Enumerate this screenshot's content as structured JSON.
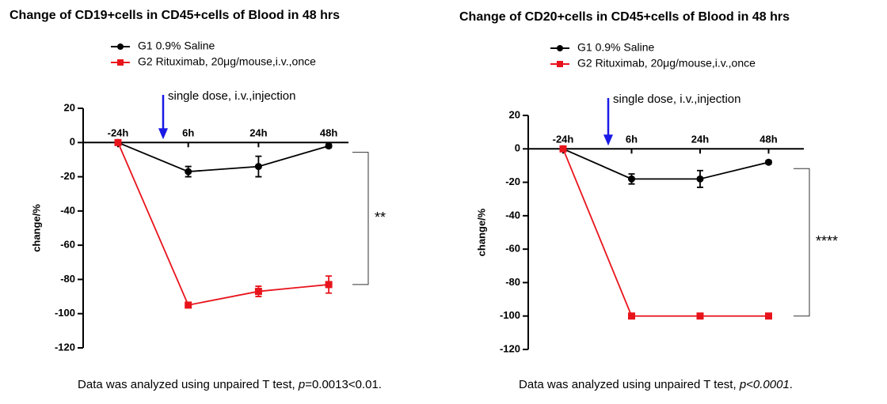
{
  "chart_data": [
    {
      "type": "line",
      "title": "Change of CD19+cells in CD45+cells of Blood in 48 hrs",
      "y_label": "change/%",
      "categories": [
        "-24h",
        "6h",
        "24h",
        "48h"
      ],
      "series": [
        {
          "name": "G1 0.9% Saline",
          "color": "#000000",
          "marker": "circle",
          "values": [
            0,
            -17,
            -14,
            -2
          ],
          "errors": [
            1,
            3,
            6,
            1
          ]
        },
        {
          "name": "G2 Rituximab, 20μg/mouse,i.v.,once",
          "color": "#e8141c",
          "marker": "square",
          "values": [
            0,
            -95,
            -87,
            -83
          ],
          "errors": [
            1,
            1,
            3,
            5
          ]
        }
      ],
      "ylim": [
        -120,
        20
      ],
      "yticks": [
        -120,
        -100,
        -80,
        -60,
        -40,
        -20,
        0,
        20
      ],
      "dose_annotation": "single dose, i.v.,injection",
      "significance": "**",
      "footnote": [
        {
          "text": "Data was analyzed using unpaired T test, ",
          "italic": false
        },
        {
          "text": "p",
          "italic": true
        },
        {
          "text": "=0.0013<0.01.",
          "italic": false
        }
      ]
    },
    {
      "type": "line",
      "title": "Change of CD20+cells in CD45+cells of Blood in 48 hrs",
      "y_label": "change/%",
      "categories": [
        "-24h",
        "6h",
        "24h",
        "48h"
      ],
      "series": [
        {
          "name": "G1 0.9% Saline",
          "color": "#000000",
          "marker": "circle",
          "values": [
            0,
            -18,
            -18,
            -8
          ],
          "errors": [
            1,
            3,
            5,
            1
          ]
        },
        {
          "name": "G2 Rituximab, 20μg/mouse,i.v.,once",
          "color": "#e8141c",
          "marker": "square",
          "values": [
            0,
            -100,
            -100,
            -100
          ],
          "errors": [
            1,
            1,
            1,
            1
          ]
        }
      ],
      "ylim": [
        -120,
        20
      ],
      "yticks": [
        -120,
        -100,
        -80,
        -60,
        -40,
        -20,
        0,
        20
      ],
      "dose_annotation": "single dose, i.v.,injection",
      "significance": "****",
      "footnote": [
        {
          "text": "Data was analyzed using unpaired T test, ",
          "italic": false
        },
        {
          "text": "p<0.0001",
          "italic": true
        },
        {
          "text": ".",
          "italic": false
        }
      ]
    }
  ]
}
